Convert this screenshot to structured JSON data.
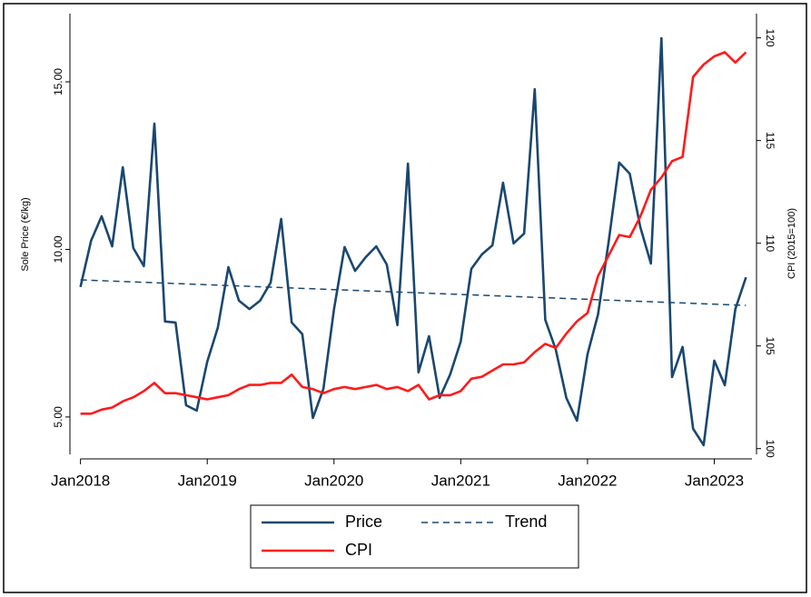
{
  "chart_data": {
    "type": "line",
    "x": [
      "2018-01",
      "2018-02",
      "2018-03",
      "2018-04",
      "2018-05",
      "2018-06",
      "2018-07",
      "2018-08",
      "2018-09",
      "2018-10",
      "2018-11",
      "2018-12",
      "2019-01",
      "2019-02",
      "2019-03",
      "2019-04",
      "2019-05",
      "2019-06",
      "2019-07",
      "2019-08",
      "2019-09",
      "2019-10",
      "2019-11",
      "2019-12",
      "2020-01",
      "2020-02",
      "2020-03",
      "2020-04",
      "2020-05",
      "2020-06",
      "2020-07",
      "2020-08",
      "2020-09",
      "2020-10",
      "2020-11",
      "2020-12",
      "2021-01",
      "2021-02",
      "2021-03",
      "2021-04",
      "2021-05",
      "2021-06",
      "2021-07",
      "2021-08",
      "2021-09",
      "2021-10",
      "2021-11",
      "2021-12",
      "2022-01",
      "2022-02",
      "2022-03",
      "2022-04",
      "2022-05",
      "2022-06",
      "2022-07",
      "2022-08",
      "2022-09",
      "2022-10",
      "2022-11",
      "2022-12",
      "2023-01",
      "2023-02",
      "2023-03",
      "2023-04"
    ],
    "xlim": [
      "2017-12",
      "2023-05"
    ],
    "xticks": [
      {
        "value": "2018-01",
        "label": "Jan2018"
      },
      {
        "value": "2019-01",
        "label": "Jan2019"
      },
      {
        "value": "2020-01",
        "label": "Jan2020"
      },
      {
        "value": "2021-01",
        "label": "Jan2021"
      },
      {
        "value": "2022-01",
        "label": "Jan2022"
      },
      {
        "value": "2023-01",
        "label": "Jan2023"
      }
    ],
    "y_label": "Sole Price (€/kg)",
    "y2_label": "CPI (2015=100)",
    "ylim": [
      3.75,
      17.17
    ],
    "yticks": [
      {
        "value": 5,
        "label": "5.00"
      },
      {
        "value": 10,
        "label": "10.00"
      },
      {
        "value": 15,
        "label": "15.00"
      }
    ],
    "y2lim": [
      99.5,
      121.4
    ],
    "y2ticks": [
      100,
      105,
      110,
      115,
      120
    ],
    "legend_position": "bottom",
    "series": [
      {
        "name": "Price",
        "color": "#1a476f",
        "style": "solid",
        "values": [
          8.88,
          10.26,
          10.99,
          10.09,
          12.45,
          10.04,
          9.5,
          13.75,
          7.85,
          7.82,
          5.35,
          5.19,
          6.65,
          7.66,
          9.47,
          8.47,
          8.22,
          8.47,
          9.01,
          10.91,
          7.82,
          7.47,
          4.97,
          5.84,
          8.22,
          10.07,
          9.36,
          9.77,
          10.09,
          9.55,
          7.74,
          12.56,
          6.33,
          7.41,
          5.57,
          6.27,
          7.25,
          9.42,
          9.85,
          10.12,
          11.99,
          10.18,
          10.47,
          14.78,
          7.9,
          7.01,
          5.57,
          4.89,
          6.87,
          8.06,
          10.23,
          12.59,
          12.26,
          10.66,
          9.58,
          16.3,
          6.19,
          7.09,
          4.65,
          4.16,
          6.68,
          5.95,
          8.22,
          9.17
        ]
      },
      {
        "name": "Trend",
        "color": "#1a476f",
        "style": "dashed",
        "x": [
          "2018-01",
          "2023-04"
        ],
        "values": [
          9.09,
          8.33
        ]
      },
      {
        "name": "CPI",
        "color": "#ff1a1a",
        "style": "solid",
        "axis": "y2",
        "values": [
          101.7,
          101.7,
          101.9,
          102.0,
          102.3,
          102.5,
          102.8,
          103.2,
          102.7,
          102.7,
          102.6,
          102.5,
          102.4,
          102.5,
          102.6,
          102.9,
          103.1,
          103.1,
          103.2,
          103.2,
          103.6,
          103.0,
          102.9,
          102.7,
          102.9,
          103.0,
          102.9,
          103.0,
          103.1,
          102.9,
          103.0,
          102.8,
          103.1,
          102.4,
          102.6,
          102.6,
          102.8,
          103.4,
          103.5,
          103.8,
          104.1,
          104.1,
          104.2,
          104.7,
          105.1,
          104.9,
          105.6,
          106.2,
          106.6,
          108.4,
          109.4,
          110.4,
          110.3,
          111.3,
          112.6,
          113.2,
          114.0,
          114.2,
          118.1,
          118.7,
          119.1,
          119.3,
          118.8,
          119.3
        ]
      }
    ]
  }
}
